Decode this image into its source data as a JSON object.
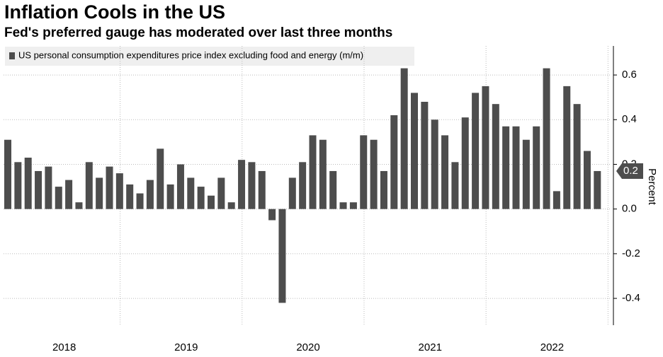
{
  "chart_data": {
    "type": "bar",
    "title": "Inflation Cools in the US",
    "subtitle": "Fed's preferred gauge has moderated over last three months",
    "y_label": "Percent",
    "series": [
      {
        "name": "US personal consumption expenditures price index excluding food and energy (m/m)",
        "color": "#4d4d4d",
        "values": [
          0.31,
          0.21,
          0.23,
          0.17,
          0.19,
          0.1,
          0.13,
          0.03,
          0.21,
          0.14,
          0.19,
          0.16,
          0.11,
          0.07,
          0.13,
          0.27,
          0.11,
          0.2,
          0.14,
          0.1,
          0.06,
          0.14,
          0.03,
          0.22,
          0.21,
          0.17,
          -0.05,
          -0.42,
          0.14,
          0.21,
          0.33,
          0.31,
          0.17,
          0.03,
          0.03,
          0.33,
          0.31,
          0.17,
          0.42,
          0.63,
          0.52,
          0.48,
          0.4,
          0.33,
          0.21,
          0.41,
          0.52,
          0.55,
          0.47,
          0.37,
          0.37,
          0.31,
          0.37,
          0.63,
          0.08,
          0.55,
          0.47,
          0.26,
          0.17
        ]
      }
    ],
    "last_value_label": "0.2",
    "year_labels": [
      "2018",
      "2019",
      "2020",
      "2021",
      "2022"
    ],
    "ylim": [
      -0.52,
      0.73
    ],
    "yticks": [
      -0.4,
      -0.2,
      {
        "value": 0,
        "label": "0.0"
      },
      0.2,
      0.4,
      0.6
    ],
    "grid": true
  }
}
